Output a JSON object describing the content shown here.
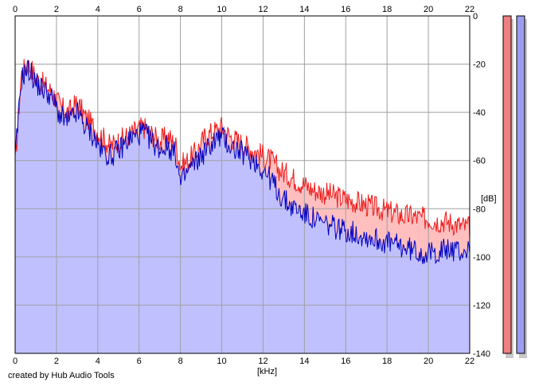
{
  "footer": {
    "credit": "created by Hub Audio Tools"
  },
  "chart_data": {
    "type": "area",
    "xlabel": "[kHz]",
    "ylabel": "[dB]",
    "xlim": [
      0,
      22
    ],
    "ylim": [
      -140,
      0
    ],
    "x_ticks": [
      0,
      2,
      4,
      6,
      8,
      10,
      12,
      14,
      16,
      18,
      20,
      22
    ],
    "y_ticks": [
      0,
      -20,
      -40,
      -60,
      -80,
      -100,
      -120,
      -140
    ],
    "grid": true,
    "colors": {
      "red_line": "#ee1c1c",
      "red_fill": "#ffbfbf",
      "blue_line": "#0000c0",
      "blue_fill": "#c0c0ff",
      "grid": "#a0a0a0",
      "frame": "#000000",
      "meter_red": "#f08080",
      "meter_blue": "#9c9cf0"
    },
    "series": [
      {
        "color": "red",
        "x": [
          0,
          0.3,
          0.6,
          0.8,
          1.0,
          1.3,
          1.6,
          1.9,
          2.2,
          2.6,
          3.0,
          3.4,
          3.8,
          4.2,
          4.6,
          5.0,
          5.4,
          5.8,
          6.2,
          6.6,
          7.0,
          7.4,
          7.8,
          8.0,
          8.4,
          8.8,
          9.2,
          9.6,
          10.0,
          10.4,
          10.8,
          11.2,
          11.6,
          12.0,
          12.4,
          12.8,
          13.2,
          13.6,
          14.0,
          14.4,
          14.8,
          15.2,
          15.6,
          16.0,
          16.4,
          16.8,
          17.2,
          17.6,
          18.0,
          18.4,
          18.8,
          19.2,
          19.6,
          20.0,
          20.4,
          20.8,
          21.2,
          21.6,
          22.0
        ],
        "y": [
          -62,
          -24,
          -20,
          -22,
          -26,
          -28,
          -30,
          -33,
          -38,
          -40,
          -36,
          -42,
          -46,
          -50,
          -54,
          -52,
          -50,
          -48,
          -46,
          -49,
          -52,
          -50,
          -54,
          -62,
          -60,
          -56,
          -50,
          -48,
          -46,
          -50,
          -52,
          -54,
          -56,
          -58,
          -60,
          -64,
          -66,
          -68,
          -70,
          -72,
          -73,
          -74,
          -75,
          -76,
          -77,
          -78,
          -79,
          -80,
          -81,
          -82,
          -83,
          -83,
          -84,
          -84,
          -85,
          -85,
          -86,
          -87,
          -88
        ]
      },
      {
        "color": "blue",
        "x": [
          0,
          0.3,
          0.6,
          0.8,
          1.0,
          1.3,
          1.6,
          1.9,
          2.2,
          2.6,
          3.0,
          3.4,
          3.8,
          4.2,
          4.6,
          5.0,
          5.4,
          5.8,
          6.2,
          6.6,
          7.0,
          7.4,
          7.8,
          8.0,
          8.4,
          8.8,
          9.2,
          9.6,
          10.0,
          10.4,
          10.8,
          11.2,
          11.6,
          12.0,
          12.4,
          12.8,
          13.2,
          13.6,
          14.0,
          14.4,
          14.8,
          15.2,
          15.6,
          16.0,
          16.4,
          16.8,
          17.2,
          17.6,
          18.0,
          18.4,
          18.8,
          19.2,
          19.6,
          20.0,
          20.4,
          20.8,
          21.2,
          21.6,
          22.0
        ],
        "y": [
          -60,
          -26,
          -22,
          -24,
          -28,
          -30,
          -32,
          -36,
          -42,
          -44,
          -40,
          -46,
          -50,
          -56,
          -58,
          -56,
          -52,
          -50,
          -48,
          -52,
          -55,
          -54,
          -58,
          -70,
          -64,
          -60,
          -56,
          -52,
          -50,
          -54,
          -56,
          -58,
          -60,
          -64,
          -68,
          -74,
          -78,
          -80,
          -82,
          -84,
          -86,
          -87,
          -88,
          -89,
          -90,
          -91,
          -92,
          -93,
          -94,
          -95,
          -96,
          -97,
          -98,
          -99,
          -98,
          -97,
          -97,
          -98,
          -97
        ]
      }
    ]
  }
}
